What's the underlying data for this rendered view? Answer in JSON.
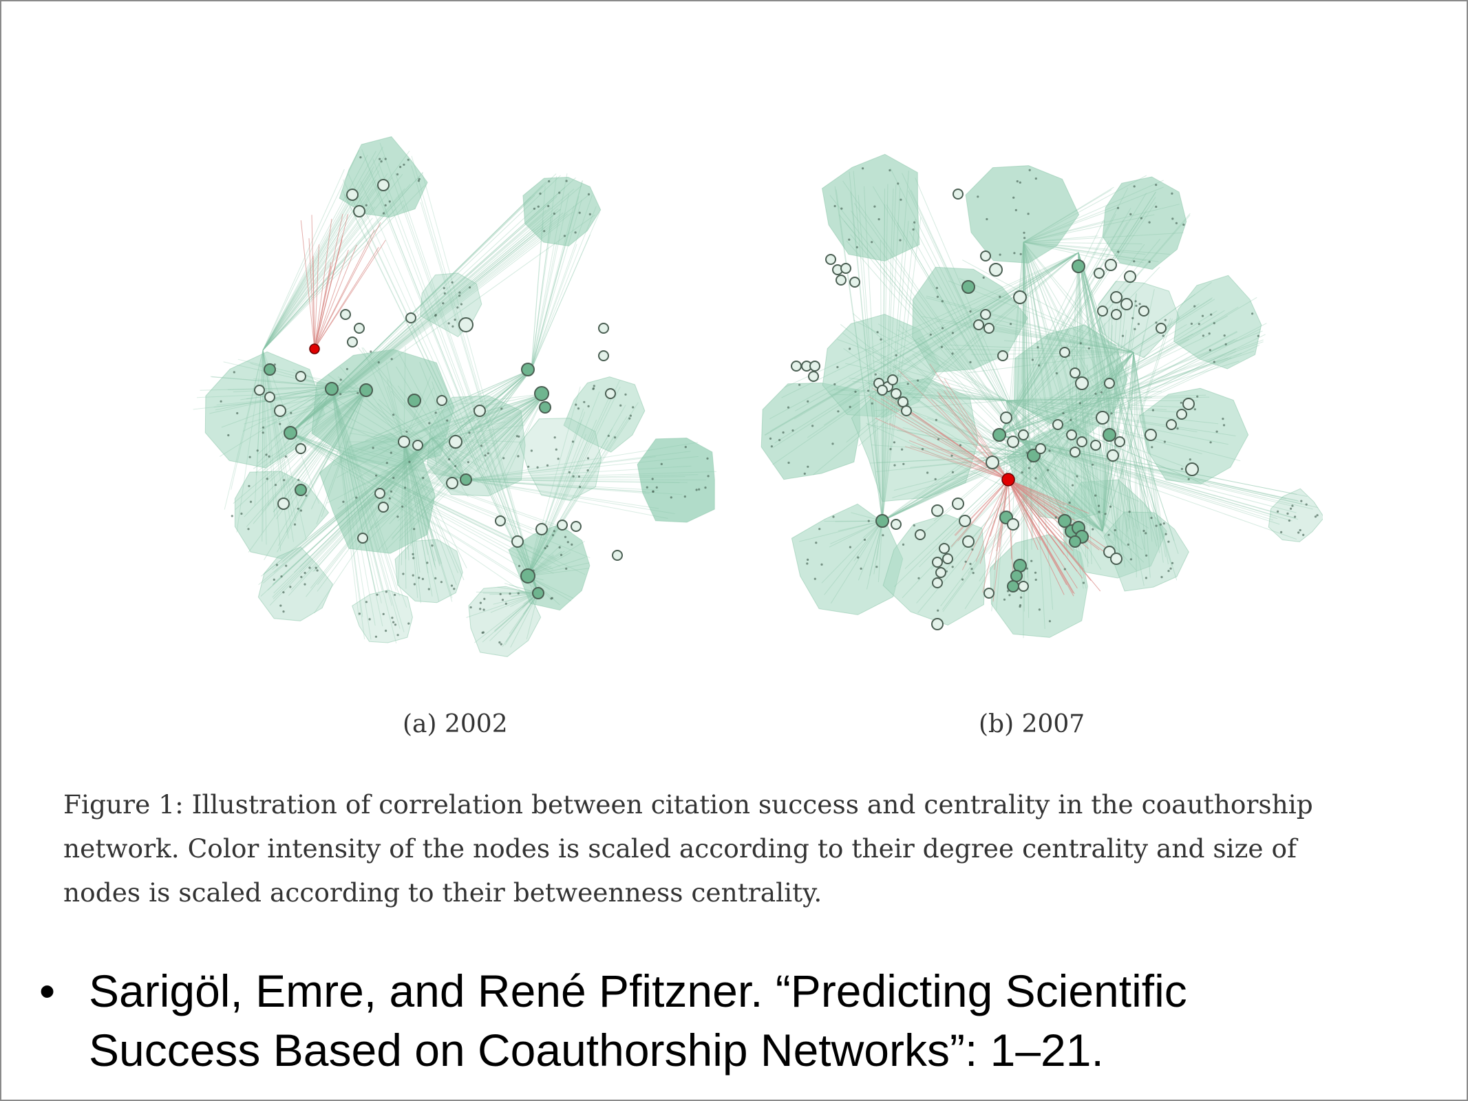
{
  "figure": {
    "panels": [
      {
        "id": "a",
        "label": "(a) 2002"
      },
      {
        "id": "b",
        "label": "(b) 2007"
      }
    ],
    "caption_lines": [
      "Figure 1: Illustration of correlation between citation success and centrality in the coauthorship",
      "network. Color intensity of the nodes is scaled according to their degree centrality and size of",
      "nodes is scaled according to their betweenness centrality."
    ],
    "colors": {
      "cluster_fill": "#a9d8c3",
      "edge": "#86c4a5",
      "node_fill_light": "#e4f2ea",
      "node_fill_dark": "#6fb58f",
      "node_stroke": "#4a5e52",
      "highlight_node": "#e00000",
      "highlight_edge": "#d98a86"
    }
  },
  "citation": {
    "bullet": "•",
    "lines": [
      "Sarigöl, Emre, and René Pfitzner. “Predicting Scientific",
      "Success Based on Coauthorship Networks”: 1–21."
    ]
  }
}
